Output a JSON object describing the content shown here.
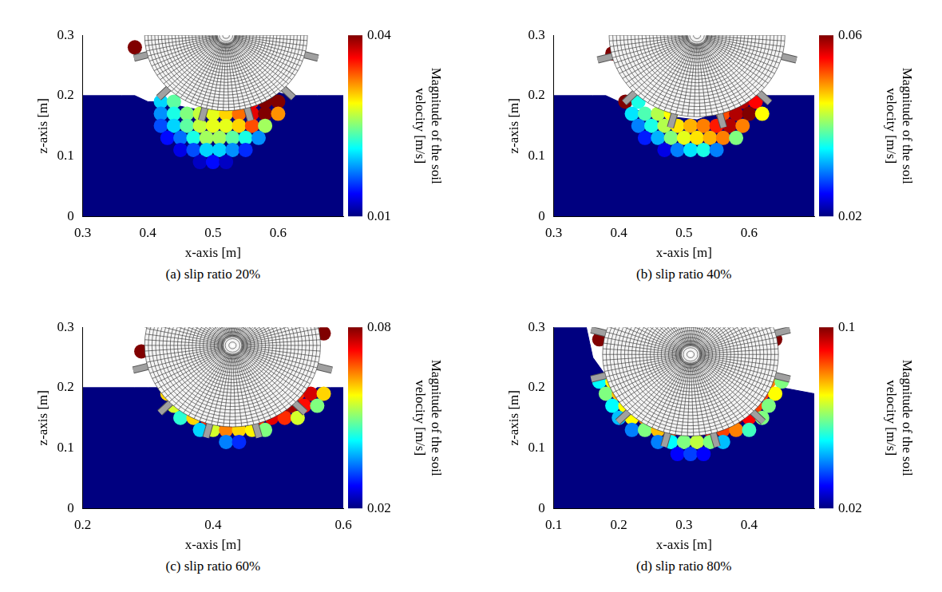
{
  "chart_data": [
    {
      "type": "scatter",
      "caption": "(a) slip ratio 20%",
      "x_label": "x-axis [m]",
      "y_label": "z-axis [m]",
      "xlim": [
        0.3,
        0.7
      ],
      "xticks": [
        0.3,
        0.4,
        0.5,
        0.6
      ],
      "ylim": [
        0,
        0.3
      ],
      "yticks": [
        0,
        0.1,
        0.2,
        0.3
      ],
      "colorbar": {
        "label": "Magnitude of the soil velocity [m/s]",
        "range": [
          0.01,
          0.04
        ],
        "ticks": [
          0.01,
          0.04
        ]
      },
      "wheel": {
        "center": [
          0.52,
          0.3
        ],
        "radius": 0.125
      },
      "surface": {
        "x": [
          0.3,
          0.36,
          0.38,
          0.4,
          0.42,
          0.46,
          0.52,
          0.58,
          0.6,
          0.62,
          0.66,
          0.7
        ],
        "z": [
          0.2,
          0.2,
          0.2,
          0.19,
          0.19,
          0.18,
          0.17,
          0.19,
          0.205,
          0.2,
          0.2,
          0.2
        ]
      },
      "particles": [
        {
          "z": 0.28,
          "x": [
            0.38
          ],
          "v": [
            0.04
          ]
        },
        {
          "z": 0.19,
          "x": [
            0.42,
            0.44,
            0.56,
            0.58,
            0.6
          ],
          "v": [
            0.02,
            0.024,
            0.036,
            0.04,
            0.04
          ]
        },
        {
          "z": 0.17,
          "x": [
            0.42,
            0.44,
            0.46,
            0.48,
            0.5,
            0.52,
            0.54,
            0.56,
            0.58,
            0.6
          ],
          "v": [
            0.018,
            0.022,
            0.025,
            0.027,
            0.028,
            0.03,
            0.033,
            0.037,
            0.04,
            0.032
          ]
        },
        {
          "z": 0.15,
          "x": [
            0.42,
            0.44,
            0.46,
            0.48,
            0.5,
            0.52,
            0.54,
            0.56,
            0.58
          ],
          "v": [
            0.016,
            0.02,
            0.024,
            0.027,
            0.028,
            0.028,
            0.03,
            0.034,
            0.026
          ]
        },
        {
          "z": 0.13,
          "x": [
            0.43,
            0.45,
            0.47,
            0.49,
            0.51,
            0.53,
            0.55,
            0.57
          ],
          "v": [
            0.014,
            0.017,
            0.022,
            0.026,
            0.026,
            0.024,
            0.022,
            0.018
          ]
        },
        {
          "z": 0.11,
          "x": [
            0.45,
            0.47,
            0.49,
            0.51,
            0.53,
            0.55
          ],
          "v": [
            0.013,
            0.016,
            0.02,
            0.02,
            0.018,
            0.015
          ]
        },
        {
          "z": 0.09,
          "x": [
            0.48,
            0.5,
            0.52
          ],
          "v": [
            0.012,
            0.014,
            0.012
          ]
        }
      ]
    },
    {
      "type": "scatter",
      "caption": "(b) slip ratio 40%",
      "x_label": "x-axis [m]",
      "y_label": "z-axis [m]",
      "xlim": [
        0.3,
        0.7
      ],
      "xticks": [
        0.3,
        0.4,
        0.5,
        0.6
      ],
      "ylim": [
        0,
        0.3
      ],
      "yticks": [
        0,
        0.1,
        0.2,
        0.3
      ],
      "colorbar": {
        "label": "Magnitude of the soil velocity [m/s]",
        "range": [
          0.02,
          0.06
        ],
        "ticks": [
          0.02,
          0.06
        ]
      },
      "wheel": {
        "center": [
          0.52,
          0.3
        ],
        "radius": 0.135
      },
      "surface": {
        "x": [
          0.3,
          0.36,
          0.38,
          0.4,
          0.44,
          0.52,
          0.6,
          0.62,
          0.64,
          0.7
        ],
        "z": [
          0.2,
          0.2,
          0.2,
          0.19,
          0.17,
          0.16,
          0.19,
          0.2,
          0.2,
          0.2
        ]
      },
      "particles": [
        {
          "z": 0.27,
          "x": [
            0.39
          ],
          "v": [
            0.06
          ]
        },
        {
          "z": 0.19,
          "x": [
            0.41,
            0.43,
            0.59,
            0.61
          ],
          "v": [
            0.06,
            0.036,
            0.058,
            0.055
          ]
        },
        {
          "z": 0.17,
          "x": [
            0.42,
            0.44,
            0.46,
            0.48,
            0.56,
            0.58,
            0.6,
            0.62
          ],
          "v": [
            0.034,
            0.038,
            0.042,
            0.045,
            0.052,
            0.058,
            0.06,
            0.045
          ]
        },
        {
          "z": 0.15,
          "x": [
            0.43,
            0.45,
            0.47,
            0.49,
            0.51,
            0.53,
            0.55,
            0.57,
            0.59
          ],
          "v": [
            0.03,
            0.036,
            0.042,
            0.046,
            0.048,
            0.05,
            0.054,
            0.058,
            0.05
          ]
        },
        {
          "z": 0.13,
          "x": [
            0.44,
            0.46,
            0.48,
            0.5,
            0.52,
            0.54,
            0.56,
            0.58
          ],
          "v": [
            0.026,
            0.032,
            0.04,
            0.044,
            0.046,
            0.048,
            0.05,
            0.04
          ]
        },
        {
          "z": 0.11,
          "x": [
            0.47,
            0.49,
            0.51,
            0.53,
            0.55
          ],
          "v": [
            0.024,
            0.03,
            0.034,
            0.036,
            0.03
          ]
        }
      ]
    },
    {
      "type": "scatter",
      "caption": "(c) slip ratio 60%",
      "x_label": "x-axis [m]",
      "y_label": "z-axis [m]",
      "xlim": [
        0.2,
        0.6
      ],
      "xticks": [
        0.2,
        0.4,
        0.6
      ],
      "ylim": [
        0,
        0.3
      ],
      "yticks": [
        0,
        0.1,
        0.2,
        0.3
      ],
      "colorbar": {
        "label": "Magnitude of the soil velocity [m/s]",
        "range": [
          0.02,
          0.08
        ],
        "ticks": [
          0.02,
          0.08
        ]
      },
      "wheel": {
        "center": [
          0.43,
          0.27
        ],
        "radius": 0.135
      },
      "surface": {
        "x": [
          0.2,
          0.28,
          0.3,
          0.32,
          0.36,
          0.43,
          0.52,
          0.56,
          0.58,
          0.6
        ],
        "z": [
          0.2,
          0.2,
          0.2,
          0.2,
          0.16,
          0.13,
          0.17,
          0.2,
          0.2,
          0.2
        ]
      },
      "particles": [
        {
          "z": 0.29,
          "x": [
            0.57
          ],
          "v": [
            0.08
          ]
        },
        {
          "z": 0.26,
          "x": [
            0.29
          ],
          "v": [
            0.08
          ]
        },
        {
          "z": 0.19,
          "x": [
            0.33,
            0.35,
            0.53,
            0.55,
            0.57
          ],
          "v": [
            0.06,
            0.065,
            0.07,
            0.075,
            0.06
          ]
        },
        {
          "z": 0.17,
          "x": [
            0.34,
            0.36,
            0.38,
            0.5,
            0.52,
            0.54,
            0.56
          ],
          "v": [
            0.055,
            0.065,
            0.07,
            0.075,
            0.078,
            0.072,
            0.05
          ]
        },
        {
          "z": 0.15,
          "x": [
            0.35,
            0.37,
            0.39,
            0.41,
            0.43,
            0.45,
            0.47,
            0.49,
            0.51,
            0.53
          ],
          "v": [
            0.045,
            0.06,
            0.07,
            0.072,
            0.07,
            0.065,
            0.07,
            0.074,
            0.07,
            0.055
          ]
        },
        {
          "z": 0.13,
          "x": [
            0.38,
            0.4,
            0.42,
            0.44,
            0.46,
            0.48
          ],
          "v": [
            0.04,
            0.055,
            0.065,
            0.06,
            0.058,
            0.05
          ]
        },
        {
          "z": 0.11,
          "x": [
            0.42,
            0.44
          ],
          "v": [
            0.035,
            0.03
          ]
        }
      ]
    },
    {
      "type": "scatter",
      "caption": "(d) slip ratio 80%",
      "x_label": "x-axis [m]",
      "y_label": "z-axis [m]",
      "xlim": [
        0.1,
        0.5
      ],
      "xticks": [
        0.1,
        0.2,
        0.3,
        0.4
      ],
      "ylim": [
        0,
        0.3
      ],
      "yticks": [
        0,
        0.1,
        0.2,
        0.3
      ],
      "colorbar": {
        "label": "Magnitude of the soil velocity [m/s]",
        "range": [
          0.02,
          0.1
        ],
        "ticks": [
          0.02,
          0.1
        ]
      },
      "wheel": {
        "center": [
          0.31,
          0.255
        ],
        "radius": 0.135
      },
      "surface": {
        "x": [
          0.1,
          0.15,
          0.16,
          0.18,
          0.2,
          0.25,
          0.31,
          0.38,
          0.43,
          0.45,
          0.5
        ],
        "z": [
          0.3,
          0.3,
          0.25,
          0.22,
          0.19,
          0.14,
          0.12,
          0.14,
          0.2,
          0.2,
          0.19
        ]
      },
      "particles": [
        {
          "z": 0.28,
          "x": [
            0.17,
            0.44
          ],
          "v": [
            0.1,
            0.1
          ]
        },
        {
          "z": 0.21,
          "x": [
            0.17,
            0.19,
            0.43,
            0.45
          ],
          "v": [
            0.05,
            0.07,
            0.08,
            0.06
          ]
        },
        {
          "z": 0.19,
          "x": [
            0.18,
            0.2,
            0.42,
            0.44
          ],
          "v": [
            0.06,
            0.075,
            0.085,
            0.07
          ]
        },
        {
          "z": 0.17,
          "x": [
            0.19,
            0.21,
            0.23,
            0.39,
            0.41,
            0.43
          ],
          "v": [
            0.05,
            0.07,
            0.08,
            0.09,
            0.085,
            0.06
          ]
        },
        {
          "z": 0.15,
          "x": [
            0.2,
            0.22,
            0.24,
            0.26,
            0.34,
            0.36,
            0.38,
            0.4,
            0.42
          ],
          "v": [
            0.045,
            0.07,
            0.08,
            0.085,
            0.09,
            0.095,
            0.1,
            0.09,
            0.06
          ]
        },
        {
          "z": 0.13,
          "x": [
            0.22,
            0.24,
            0.26,
            0.28,
            0.3,
            0.32,
            0.34,
            0.36,
            0.38,
            0.4
          ],
          "v": [
            0.04,
            0.06,
            0.075,
            0.085,
            0.09,
            0.095,
            0.09,
            0.085,
            0.08,
            0.055
          ]
        },
        {
          "z": 0.11,
          "x": [
            0.26,
            0.28,
            0.3,
            0.32,
            0.34,
            0.36
          ],
          "v": [
            0.04,
            0.05,
            0.06,
            0.065,
            0.06,
            0.045
          ]
        },
        {
          "z": 0.09,
          "x": [
            0.29,
            0.31,
            0.33
          ],
          "v": [
            0.03,
            0.035,
            0.03
          ]
        }
      ]
    }
  ]
}
